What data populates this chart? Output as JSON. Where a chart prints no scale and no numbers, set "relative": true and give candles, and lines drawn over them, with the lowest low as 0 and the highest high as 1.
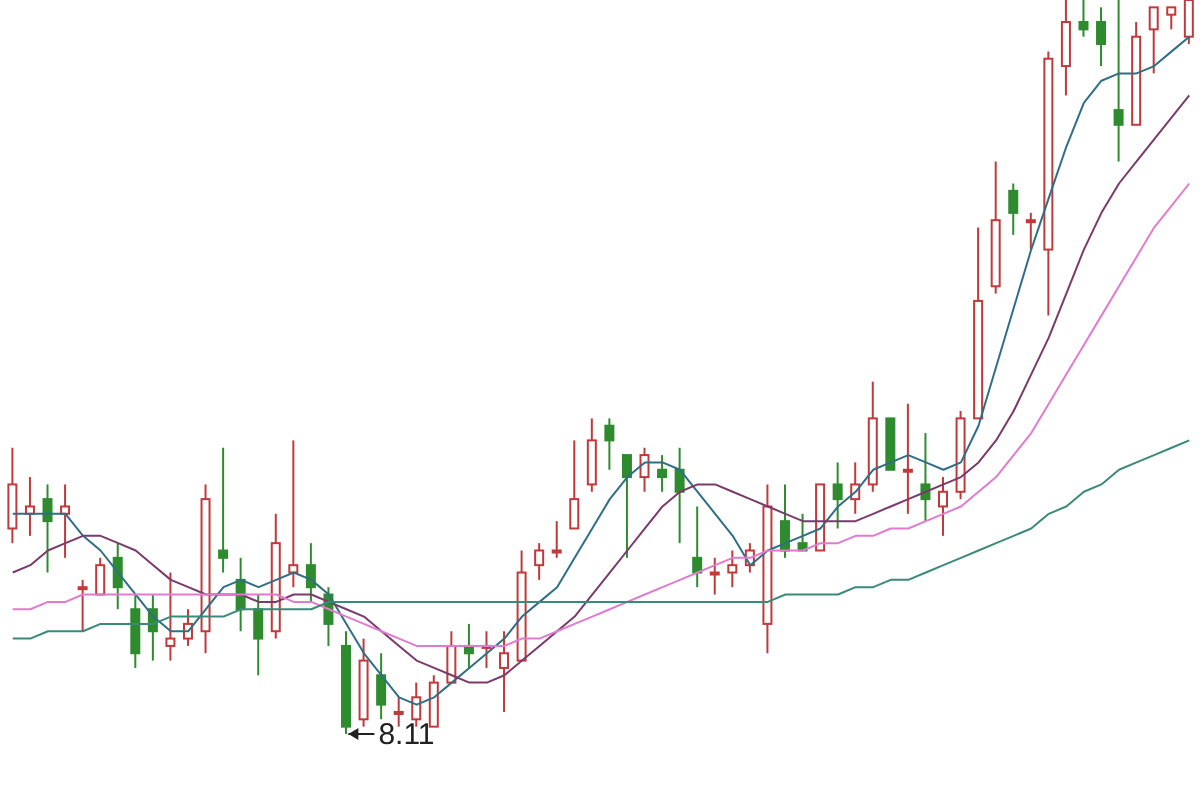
{
  "chart_data": {
    "type": "candlestick",
    "relative": true,
    "tick_labels": false,
    "colors": [
      "#c0393b",
      "#c0393b",
      "#2e8b2e",
      "#c0393b",
      "#c0393b",
      "#c0393b",
      "#2e8b2e",
      "#2e8b2e",
      "#2e8b2e",
      "#c0393b",
      "#c0393b",
      "#c0393b",
      "#2e8b2e",
      "#2e8b2e",
      "#2e8b2e",
      "#c0393b",
      "#c0393b",
      "#2e8b2e",
      "#2e8b2e",
      "#2e8b2e",
      "#c0393b",
      "#2e8b2e",
      "#c0393b",
      "#c0393b",
      "#c0393b",
      "#c0393b",
      "#2e8b2e",
      "#c0393b",
      "#c0393b",
      "#c0393b",
      "#c0393b",
      "#c0393b",
      "#c0393b",
      "#c0393b",
      "#2e8b2e",
      "#2e8b2e",
      "#c0393b",
      "#2e8b2e",
      "#2e8b2e",
      "#2e8b2e",
      "#c0393b",
      "#c0393b",
      "#c0393b",
      "#c0393b",
      "#2e8b2e",
      "#2e8b2e",
      "#c0393b",
      "#2e8b2e",
      "#c0393b",
      "#c0393b",
      "#2e8b2e",
      "#c0393b",
      "#2e8b2e",
      "#c0393b",
      "#c0393b",
      "#c0393b",
      "#c0393b",
      "#2e8b2e",
      "#c0393b",
      "#c0393b",
      "#c0393b",
      "#2e8b2e",
      "#2e8b2e",
      "#2e8b2e",
      "#c0393b",
      "#c0393b",
      "#c0393b",
      "#c0393b"
    ],
    "categories": [
      null,
      null,
      null,
      null,
      null,
      null,
      null,
      null,
      null,
      null,
      null,
      null,
      null,
      null,
      null,
      null,
      null,
      null,
      null,
      null,
      null,
      null,
      null,
      null,
      null,
      null,
      null,
      null,
      null,
      null,
      null,
      null,
      null,
      null,
      null,
      null,
      null,
      null,
      null,
      null,
      null,
      null,
      null,
      null,
      null,
      null,
      null,
      null,
      null,
      null,
      null,
      null,
      null,
      null,
      null,
      null,
      null,
      null,
      null,
      null,
      null,
      null,
      null,
      null,
      null,
      null,
      null,
      null
    ],
    "ohlc": [
      [
        0.28,
        0.39,
        0.26,
        0.34
      ],
      [
        0.3,
        0.35,
        0.27,
        0.31
      ],
      [
        0.32,
        0.34,
        0.22,
        0.29
      ],
      [
        0.3,
        0.34,
        0.24,
        0.31
      ],
      [
        0.2,
        0.21,
        0.14,
        0.2
      ],
      [
        0.19,
        0.24,
        0.19,
        0.23
      ],
      [
        0.24,
        0.26,
        0.17,
        0.2
      ],
      [
        0.17,
        0.19,
        0.09,
        0.11
      ],
      [
        0.17,
        0.19,
        0.1,
        0.14
      ],
      [
        0.12,
        0.22,
        0.1,
        0.13
      ],
      [
        0.13,
        0.17,
        0.12,
        0.15
      ],
      [
        0.14,
        0.34,
        0.11,
        0.32
      ],
      [
        0.25,
        0.39,
        0.22,
        0.24
      ],
      [
        0.21,
        0.24,
        0.14,
        0.17
      ],
      [
        0.17,
        0.19,
        0.08,
        0.13
      ],
      [
        0.14,
        0.3,
        0.13,
        0.26
      ],
      [
        0.22,
        0.4,
        0.2,
        0.23
      ],
      [
        0.23,
        0.26,
        0.18,
        0.2
      ],
      [
        0.19,
        0.2,
        0.12,
        0.15
      ],
      [
        0.12,
        0.14,
        0,
        0.01
      ],
      [
        0.02,
        0.13,
        0.01,
        0.1
      ],
      [
        0.08,
        0.11,
        0.02,
        0.04
      ],
      [
        0.03,
        0.05,
        0.01,
        0.03
      ],
      [
        0.02,
        0.07,
        0.01,
        0.05
      ],
      [
        0.01,
        0.08,
        0.01,
        0.07
      ],
      [
        0.07,
        0.14,
        0.07,
        0.12
      ],
      [
        0.12,
        0.15,
        0.09,
        0.11
      ],
      [
        0.12,
        0.14,
        0.09,
        0.12
      ],
      [
        0.09,
        0.14,
        0.03,
        0.11
      ],
      [
        0.1,
        0.25,
        0.1,
        0.22
      ],
      [
        0.23,
        0.26,
        0.21,
        0.25
      ],
      [
        0.25,
        0.29,
        0.24,
        0.25
      ],
      [
        0.28,
        0.4,
        0.28,
        0.32
      ],
      [
        0.34,
        0.43,
        0.33,
        0.4
      ],
      [
        0.42,
        0.43,
        0.36,
        0.4
      ],
      [
        0.38,
        0.38,
        0.24,
        0.35
      ],
      [
        0.35,
        0.39,
        0.33,
        0.38
      ],
      [
        0.36,
        0.38,
        0.33,
        0.35
      ],
      [
        0.36,
        0.39,
        0.26,
        0.33
      ],
      [
        0.24,
        0.31,
        0.2,
        0.22
      ],
      [
        0.22,
        0.24,
        0.19,
        0.22
      ],
      [
        0.22,
        0.25,
        0.2,
        0.23
      ],
      [
        0.23,
        0.26,
        0.22,
        0.25
      ],
      [
        0.15,
        0.34,
        0.11,
        0.31
      ],
      [
        0.29,
        0.34,
        0.24,
        0.25
      ],
      [
        0.26,
        0.3,
        0.25,
        0.25
      ],
      [
        0.25,
        0.34,
        0.25,
        0.34
      ],
      [
        0.34,
        0.37,
        0.28,
        0.32
      ],
      [
        0.32,
        0.37,
        0.3,
        0.34
      ],
      [
        0.34,
        0.48,
        0.33,
        0.43
      ],
      [
        0.43,
        0.43,
        0.36,
        0.36
      ],
      [
        0.36,
        0.45,
        0.3,
        0.36
      ],
      [
        0.34,
        0.41,
        0.29,
        0.32
      ],
      [
        0.31,
        0.35,
        0.27,
        0.33
      ],
      [
        0.33,
        0.44,
        0.32,
        0.43
      ],
      [
        0.43,
        0.69,
        0.43,
        0.59
      ],
      [
        0.61,
        0.78,
        0.6,
        0.7
      ],
      [
        0.74,
        0.75,
        0.68,
        0.71
      ],
      [
        0.7,
        0.71,
        0.66,
        0.7
      ],
      [
        0.66,
        0.93,
        0.57,
        0.92
      ],
      [
        0.91,
        1,
        0.87,
        0.97
      ],
      [
        0.97,
        1,
        0.95,
        0.96
      ],
      [
        0.97,
        0.99,
        0.91,
        0.94
      ],
      [
        0.85,
        1,
        0.78,
        0.83
      ],
      [
        0.83,
        0.97,
        0.83,
        0.95
      ],
      [
        0.96,
        0.99,
        0.9,
        0.99
      ],
      [
        0.98,
        0.99,
        0.96,
        0.99
      ],
      [
        0.95,
        1,
        0.94,
        1
      ]
    ],
    "series": [
      {
        "type": "line",
        "color": "#2f6f86",
        "values": [
          0.3,
          0.3,
          0.3,
          0.3,
          0.27,
          0.25,
          0.22,
          0.19,
          0.16,
          0.14,
          0.14,
          0.17,
          0.2,
          0.21,
          0.2,
          0.21,
          0.22,
          0.21,
          0.19,
          0.15,
          0.11,
          0.08,
          0.05,
          0.04,
          0.05,
          0.07,
          0.09,
          0.11,
          0.13,
          0.16,
          0.18,
          0.2,
          0.24,
          0.28,
          0.32,
          0.35,
          0.37,
          0.37,
          0.36,
          0.33,
          0.3,
          0.27,
          0.23,
          0.25,
          0.26,
          0.27,
          0.28,
          0.31,
          0.33,
          0.36,
          0.37,
          0.38,
          0.37,
          0.36,
          0.37,
          0.42,
          0.5,
          0.58,
          0.66,
          0.73,
          0.8,
          0.86,
          0.89,
          0.9,
          0.9,
          0.91,
          0.93,
          0.95
        ]
      },
      {
        "type": "line",
        "color": "#7a3a6a",
        "values": [
          0.22,
          0.23,
          0.25,
          0.26,
          0.27,
          0.27,
          0.26,
          0.25,
          0.23,
          0.21,
          0.2,
          0.19,
          0.19,
          0.19,
          0.18,
          0.18,
          0.19,
          0.19,
          0.18,
          0.17,
          0.16,
          0.14,
          0.12,
          0.1,
          0.09,
          0.08,
          0.07,
          0.07,
          0.08,
          0.1,
          0.12,
          0.14,
          0.16,
          0.19,
          0.22,
          0.25,
          0.28,
          0.31,
          0.33,
          0.34,
          0.34,
          0.33,
          0.32,
          0.31,
          0.3,
          0.29,
          0.29,
          0.29,
          0.29,
          0.3,
          0.31,
          0.32,
          0.33,
          0.34,
          0.35,
          0.37,
          0.4,
          0.44,
          0.49,
          0.54,
          0.6,
          0.66,
          0.71,
          0.75,
          0.78,
          0.81,
          0.84,
          0.87
        ]
      },
      {
        "type": "line",
        "color": "#e07bd0",
        "values": [
          0.17,
          0.17,
          0.18,
          0.18,
          0.19,
          0.19,
          0.19,
          0.19,
          0.19,
          0.19,
          0.19,
          0.19,
          0.19,
          0.19,
          0.19,
          0.19,
          0.18,
          0.18,
          0.17,
          0.16,
          0.15,
          0.14,
          0.13,
          0.12,
          0.12,
          0.12,
          0.12,
          0.12,
          0.12,
          0.13,
          0.13,
          0.14,
          0.15,
          0.16,
          0.17,
          0.18,
          0.19,
          0.2,
          0.21,
          0.22,
          0.23,
          0.24,
          0.24,
          0.25,
          0.25,
          0.25,
          0.26,
          0.26,
          0.27,
          0.27,
          0.28,
          0.28,
          0.29,
          0.3,
          0.31,
          0.33,
          0.35,
          0.38,
          0.41,
          0.45,
          0.49,
          0.53,
          0.57,
          0.61,
          0.65,
          0.69,
          0.72,
          0.75
        ]
      },
      {
        "type": "line",
        "color": "#3a8a7a",
        "values": [
          0.13,
          0.13,
          0.14,
          0.14,
          0.14,
          0.15,
          0.15,
          0.15,
          0.15,
          0.16,
          0.16,
          0.16,
          0.16,
          0.17,
          0.17,
          0.17,
          0.17,
          0.17,
          0.18,
          0.18,
          0.18,
          0.18,
          0.18,
          0.18,
          0.18,
          0.18,
          0.18,
          0.18,
          0.18,
          0.18,
          0.18,
          0.18,
          0.18,
          0.18,
          0.18,
          0.18,
          0.18,
          0.18,
          0.18,
          0.18,
          0.18,
          0.18,
          0.18,
          0.18,
          0.19,
          0.19,
          0.19,
          0.19,
          0.2,
          0.2,
          0.21,
          0.21,
          0.22,
          0.23,
          0.24,
          0.25,
          0.26,
          0.27,
          0.28,
          0.3,
          0.31,
          0.33,
          0.34,
          0.36,
          0.37,
          0.38,
          0.39,
          0.4
        ]
      }
    ],
    "annotations": [
      "8.11"
    ]
  }
}
